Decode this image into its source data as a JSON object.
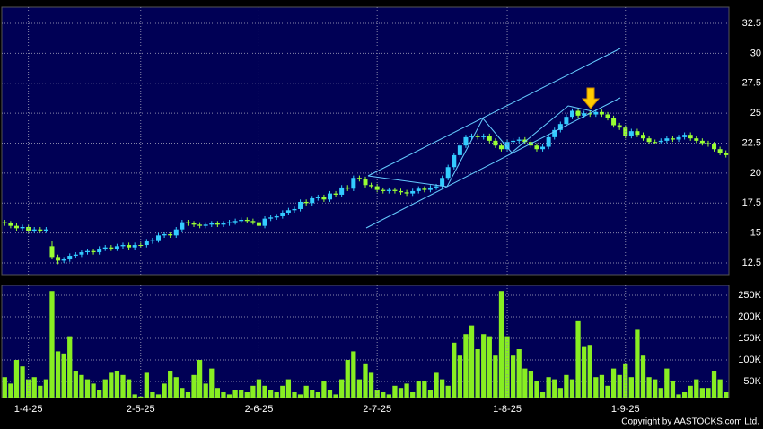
{
  "chart_data": [
    {
      "type": "candlestick",
      "open": [
        15.9,
        15.8,
        15.6,
        15.4,
        15.5,
        15.2,
        15.3,
        15.2,
        13.9,
        13.0,
        12.7,
        12.8,
        13.1,
        13.2,
        13.4,
        13.5,
        13.4,
        13.7,
        13.8,
        13.7,
        13.9,
        14.0,
        13.8,
        14.0,
        14.0,
        14.3,
        14.4,
        14.8,
        14.9,
        14.8,
        15.3,
        15.9,
        15.8,
        15.7,
        15.6,
        15.7,
        15.8,
        15.7,
        15.8,
        15.9,
        16.0,
        16.1,
        16.0,
        15.9,
        15.6,
        16.2,
        16.3,
        16.4,
        16.7,
        16.9,
        17.0,
        17.6,
        17.5,
        17.9,
        18.0,
        17.8,
        18.3,
        18.2,
        18.8,
        18.7,
        19.6,
        19.5,
        19.0,
        18.9,
        18.6,
        18.5,
        18.6,
        18.5,
        18.4,
        18.3,
        18.5,
        18.7,
        18.6,
        18.8,
        18.9,
        19.6,
        20.5,
        21.5,
        22.3,
        23.0,
        23.1,
        23.0,
        23.1,
        22.7,
        22.3,
        22.0,
        22.6,
        22.7,
        22.8,
        22.6,
        22.3,
        22.0,
        22.2,
        23.0,
        23.6,
        24.1,
        24.7,
        25.2,
        24.8,
        25.0,
        24.9,
        25.1,
        24.9,
        24.6,
        24.0,
        23.8,
        23.1,
        23.5,
        23.2,
        22.9,
        22.6,
        22.6,
        22.7,
        22.9,
        22.8,
        23.0,
        23.2,
        22.9,
        22.7,
        22.5,
        22.4,
        22.0,
        21.7
      ],
      "high": [
        16.1,
        16.0,
        15.8,
        15.7,
        15.7,
        15.5,
        15.5,
        15.5,
        14.3,
        13.2,
        13.0,
        13.3,
        13.4,
        13.6,
        13.7,
        13.7,
        13.9,
        14.0,
        14.0,
        14.1,
        14.2,
        14.2,
        14.2,
        14.2,
        14.5,
        14.6,
        15.0,
        15.1,
        15.1,
        15.5,
        16.1,
        16.1,
        16.0,
        15.9,
        15.9,
        16.0,
        16.0,
        16.0,
        16.1,
        16.2,
        16.3,
        16.3,
        16.2,
        16.1,
        16.4,
        16.5,
        16.6,
        16.9,
        17.1,
        17.2,
        17.8,
        17.8,
        18.1,
        18.2,
        18.2,
        18.5,
        18.5,
        19.0,
        19.0,
        19.8,
        19.8,
        19.7,
        19.2,
        19.1,
        18.8,
        18.8,
        18.8,
        18.7,
        18.6,
        18.7,
        18.9,
        18.9,
        19.0,
        19.1,
        19.8,
        20.7,
        21.7,
        22.5,
        23.2,
        23.3,
        23.3,
        23.3,
        23.3,
        22.9,
        22.5,
        22.8,
        22.9,
        23.0,
        23.0,
        22.8,
        22.5,
        22.4,
        23.2,
        23.8,
        24.3,
        24.9,
        25.4,
        25.4,
        25.2,
        25.2,
        25.3,
        25.3,
        25.1,
        24.8,
        24.2,
        24.0,
        23.7,
        23.7,
        23.4,
        23.1,
        22.8,
        22.9,
        23.1,
        23.1,
        23.2,
        23.4,
        23.4,
        23.1,
        22.9,
        22.7,
        22.6,
        22.2,
        21.9
      ],
      "low": [
        15.6,
        15.4,
        15.2,
        15.2,
        15.0,
        15.0,
        15.0,
        15.0,
        12.8,
        12.4,
        12.5,
        12.6,
        12.9,
        13.0,
        13.2,
        13.2,
        13.2,
        13.5,
        13.5,
        13.5,
        13.7,
        13.6,
        13.6,
        13.8,
        13.8,
        14.1,
        14.2,
        14.6,
        14.6,
        14.6,
        15.1,
        15.6,
        15.5,
        15.4,
        15.4,
        15.5,
        15.5,
        15.5,
        15.6,
        15.7,
        15.8,
        15.8,
        15.7,
        15.4,
        15.4,
        16.0,
        16.1,
        16.2,
        16.5,
        16.7,
        16.8,
        17.3,
        17.3,
        17.7,
        17.6,
        17.6,
        18.0,
        18.0,
        18.5,
        18.5,
        19.3,
        18.8,
        18.7,
        18.4,
        18.3,
        18.3,
        18.3,
        18.2,
        18.1,
        18.1,
        18.3,
        18.4,
        18.4,
        18.6,
        18.7,
        19.4,
        20.3,
        21.3,
        22.1,
        22.8,
        22.8,
        22.8,
        22.5,
        22.1,
        21.8,
        21.8,
        22.4,
        22.5,
        22.4,
        22.1,
        21.8,
        21.8,
        22.0,
        22.8,
        23.4,
        23.9,
        24.5,
        24.6,
        24.6,
        24.7,
        24.7,
        24.7,
        24.4,
        23.8,
        23.6,
        22.9,
        22.9,
        23.0,
        22.7,
        22.4,
        22.4,
        22.4,
        22.5,
        22.6,
        22.6,
        22.8,
        22.7,
        22.5,
        22.3,
        22.2,
        21.8,
        21.5,
        21.3
      ],
      "close": [
        15.8,
        15.6,
        15.4,
        15.5,
        15.2,
        15.3,
        15.2,
        15.3,
        13.0,
        12.7,
        12.8,
        13.1,
        13.2,
        13.4,
        13.5,
        13.4,
        13.7,
        13.8,
        13.7,
        13.9,
        14.0,
        13.8,
        14.0,
        14.0,
        14.3,
        14.4,
        14.8,
        14.9,
        14.8,
        15.3,
        15.9,
        15.8,
        15.7,
        15.6,
        15.7,
        15.8,
        15.7,
        15.8,
        15.9,
        16.0,
        16.1,
        16.0,
        15.9,
        15.6,
        16.2,
        16.3,
        16.4,
        16.7,
        16.9,
        17.0,
        17.6,
        17.5,
        17.9,
        18.0,
        17.8,
        18.3,
        18.2,
        18.8,
        18.7,
        19.6,
        19.5,
        19.0,
        18.9,
        18.6,
        18.5,
        18.6,
        18.5,
        18.4,
        18.3,
        18.5,
        18.7,
        18.6,
        18.8,
        18.9,
        19.6,
        20.5,
        21.5,
        22.3,
        23.0,
        23.1,
        23.0,
        23.1,
        22.7,
        22.3,
        22.0,
        22.6,
        22.7,
        22.8,
        22.6,
        22.3,
        22.0,
        22.2,
        23.0,
        23.6,
        24.1,
        24.7,
        25.2,
        24.8,
        25.0,
        24.9,
        25.1,
        24.9,
        24.6,
        24.0,
        23.8,
        23.1,
        23.5,
        23.2,
        22.9,
        22.6,
        22.6,
        22.7,
        22.9,
        22.8,
        23.0,
        23.2,
        22.9,
        22.7,
        22.5,
        22.4,
        22.0,
        21.7,
        21.5
      ],
      "up_color": "#33ccff",
      "down_color": "#99ff33",
      "ylim": [
        11.53,
        33.85
      ],
      "yticks": [
        12.5,
        15,
        17.5,
        20,
        22.5,
        25,
        27.5,
        30,
        32.5
      ],
      "grid": true
    },
    {
      "type": "bar",
      "categories": [
        null,
        null,
        null,
        null,
        "1-4-25",
        null,
        null,
        null,
        null,
        null,
        null,
        null,
        null,
        null,
        null,
        null,
        null,
        null,
        null,
        null,
        null,
        null,
        null,
        "2-5-25",
        null,
        null,
        null,
        null,
        null,
        null,
        null,
        null,
        null,
        null,
        null,
        null,
        null,
        null,
        null,
        null,
        null,
        null,
        null,
        "2-6-25",
        null,
        null,
        null,
        null,
        null,
        null,
        null,
        null,
        null,
        null,
        null,
        null,
        null,
        null,
        null,
        null,
        null,
        null,
        null,
        "2-7-25",
        null,
        null,
        null,
        null,
        null,
        null,
        null,
        null,
        null,
        null,
        null,
        null,
        null,
        null,
        null,
        null,
        null,
        null,
        null,
        null,
        null,
        "1-8-25",
        null,
        null,
        null,
        null,
        null,
        null,
        null,
        null,
        null,
        null,
        null,
        null,
        null,
        null,
        null,
        null,
        null,
        null,
        null,
        "1-9-25",
        null,
        null,
        null,
        null,
        null,
        null,
        null,
        null,
        null,
        null,
        null,
        null,
        null,
        null,
        null,
        null,
        null
      ],
      "values": [
        60000,
        45000,
        100000,
        85000,
        55000,
        60000,
        40000,
        55000,
        260000,
        120000,
        115000,
        155000,
        75000,
        65000,
        55000,
        45000,
        30000,
        55000,
        70000,
        75000,
        65000,
        55000,
        20000,
        15000,
        70000,
        25000,
        20000,
        45000,
        75000,
        60000,
        35000,
        25000,
        65000,
        100000,
        45000,
        80000,
        35000,
        25000,
        20000,
        30000,
        30000,
        25000,
        40000,
        55000,
        40000,
        30000,
        25000,
        40000,
        55000,
        25000,
        20000,
        40000,
        30000,
        25000,
        50000,
        30000,
        20000,
        55000,
        100000,
        120000,
        55000,
        90000,
        70000,
        30000,
        25000,
        20000,
        40000,
        35000,
        45000,
        25000,
        50000,
        50000,
        30000,
        70000,
        55000,
        40000,
        140000,
        110000,
        160000,
        180000,
        125000,
        160000,
        155000,
        110000,
        260000,
        155000,
        110000,
        125000,
        80000,
        75000,
        50000,
        25000,
        60000,
        55000,
        35000,
        65000,
        55000,
        190000,
        130000,
        135000,
        60000,
        65000,
        40000,
        80000,
        65000,
        90000,
        60000,
        170000,
        110000,
        60000,
        55000,
        35000,
        80000,
        50000,
        20000,
        25000,
        40000,
        55000,
        35000,
        35000,
        75000,
        55000,
        25000
      ],
      "color": "#88ee22",
      "ylim": [
        12500,
        273000
      ],
      "yticks": [
        {
          "value": 50000,
          "label": "50K"
        },
        {
          "value": 100000,
          "label": "100K"
        },
        {
          "value": 150000,
          "label": "150K"
        },
        {
          "value": 200000,
          "label": "200K"
        },
        {
          "value": 250000,
          "label": "250K"
        }
      ],
      "grid": true
    }
  ],
  "copyright": "Copyright by AASTOCKS.com Ltd."
}
